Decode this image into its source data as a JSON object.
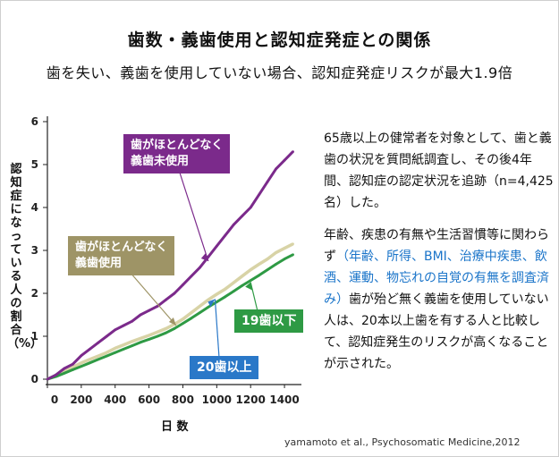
{
  "header": {
    "title": "歯数・義歯使用と認知症発症との関係",
    "subtitle": "歯を失い、義歯を使用していない場合、認知症発症リスクが最大1.9倍"
  },
  "description": {
    "p1": "65歳以上の健常者を対象として、歯と義歯の状況を質問紙調査し、その後4年間、認知症の認定状況を追跡（n=4,425名）した。",
    "p2_before": "年齢、疾患の有無や生活習慣等に関わらず",
    "p2_highlight": "（年齢、所得、BMI、治療中疾患、飲酒、運動、物忘れの自覚の有無を調査済み）",
    "p2_after": "歯が殆ど無く義歯を使用していない人は、20本以上歯を有する人と比較して、認知症発生のリスクが高くなることが示された。"
  },
  "citation": "yamamoto et al., Psychosomatic Medicine,2012",
  "colors": {
    "no_denture": "#7b2a8b",
    "denture": "#d8d3a6",
    "teeth_19": "#2e9a44",
    "teeth_20": "#2a78c8",
    "callout_denture_bg": "#9e9466"
  },
  "chart_data": {
    "type": "line",
    "xlabel": "日 数",
    "ylabel": "認知症になっている人の割合（%）",
    "xlim": [
      0,
      1500
    ],
    "ylim": [
      0,
      6
    ],
    "xticks": [
      0,
      200,
      400,
      600,
      800,
      1000,
      1200,
      1400
    ],
    "yticks": [
      0,
      1,
      2,
      3,
      4,
      5,
      6
    ],
    "series": [
      {
        "name": "歯がほとんどなく義歯未使用",
        "color": "#7b2a8b",
        "x": [
          0,
          50,
          100,
          150,
          200,
          250,
          300,
          350,
          400,
          450,
          500,
          550,
          600,
          650,
          700,
          750,
          800,
          850,
          900,
          950,
          1000,
          1050,
          1100,
          1150,
          1200,
          1250,
          1300,
          1350,
          1400,
          1450
        ],
        "y": [
          0.0,
          0.1,
          0.25,
          0.35,
          0.55,
          0.7,
          0.85,
          1.0,
          1.15,
          1.25,
          1.35,
          1.5,
          1.6,
          1.7,
          1.85,
          2.0,
          2.2,
          2.4,
          2.6,
          2.85,
          3.1,
          3.35,
          3.6,
          3.8,
          4.0,
          4.3,
          4.6,
          4.9,
          5.1,
          5.3
        ]
      },
      {
        "name": "歯がほとんどなく義歯使用",
        "color": "#d8d3a6",
        "x": [
          0,
          50,
          100,
          150,
          200,
          250,
          300,
          350,
          400,
          450,
          500,
          550,
          600,
          650,
          700,
          750,
          800,
          850,
          900,
          950,
          1000,
          1050,
          1100,
          1150,
          1200,
          1250,
          1300,
          1350,
          1400,
          1450
        ],
        "y": [
          0.0,
          0.08,
          0.18,
          0.28,
          0.38,
          0.46,
          0.54,
          0.62,
          0.72,
          0.8,
          0.88,
          0.95,
          1.02,
          1.1,
          1.18,
          1.28,
          1.4,
          1.55,
          1.7,
          1.85,
          1.98,
          2.1,
          2.25,
          2.4,
          2.55,
          2.68,
          2.8,
          2.95,
          3.05,
          3.15
        ]
      },
      {
        "name": "19歯以下",
        "color": "#2e9a44",
        "x": [
          0,
          50,
          100,
          150,
          200,
          250,
          300,
          350,
          400,
          450,
          500,
          550,
          600,
          650,
          700,
          750,
          800,
          850,
          900,
          950,
          1000,
          1050,
          1100,
          1150,
          1200,
          1250,
          1300,
          1350,
          1400,
          1450
        ],
        "y": [
          0.0,
          0.06,
          0.14,
          0.22,
          0.3,
          0.38,
          0.46,
          0.54,
          0.62,
          0.7,
          0.78,
          0.86,
          0.93,
          1.0,
          1.08,
          1.18,
          1.3,
          1.42,
          1.55,
          1.68,
          1.8,
          1.92,
          2.05,
          2.18,
          2.3,
          2.42,
          2.55,
          2.68,
          2.8,
          2.9
        ]
      },
      {
        "name": "20歯以上",
        "color": "#2a78c8",
        "x": [],
        "y": []
      }
    ],
    "annotations": [
      {
        "text": "歯がほとんどなく",
        "text2": "義歯未使用"
      },
      {
        "text": "歯がほとんどなく",
        "text2": "義歯使用"
      },
      {
        "text": "19歯以下"
      },
      {
        "text": "20歯以上"
      }
    ]
  }
}
